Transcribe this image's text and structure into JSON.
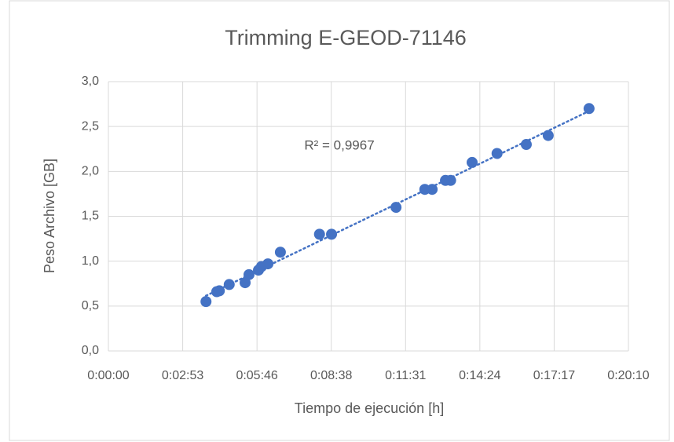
{
  "chart_data": {
    "type": "scatter",
    "title": "Trimming E-GEOD-71146",
    "x_label": "Tiempo de ejecución [h]",
    "y_label": "Peso Archivo [GB]",
    "annotation": "R² = 0,9967",
    "color": "#4472c4",
    "trendline": true,
    "grid": true,
    "x": [
      227,
      252,
      258,
      281,
      318,
      327,
      349,
      356,
      371,
      400,
      491,
      519,
      669,
      736,
      753,
      784,
      796,
      846,
      904,
      972,
      1023,
      1118
    ],
    "values": [
      0.55,
      0.66,
      0.67,
      0.74,
      0.76,
      0.85,
      0.9,
      0.94,
      0.97,
      1.1,
      1.3,
      1.3,
      1.6,
      1.8,
      1.8,
      1.9,
      1.9,
      2.1,
      2.2,
      2.3,
      2.4,
      2.7
    ],
    "xlim": [
      0,
      1209.6
    ],
    "xticks": [
      {
        "value": 0,
        "label": "0:00:00"
      },
      {
        "value": 172.8,
        "label": "0:02:53"
      },
      {
        "value": 345.6,
        "label": "0:05:46"
      },
      {
        "value": 518.4,
        "label": "0:08:38"
      },
      {
        "value": 691.2,
        "label": "0:11:31"
      },
      {
        "value": 864,
        "label": "0:14:24"
      },
      {
        "value": 1036.8,
        "label": "0:17:17"
      },
      {
        "value": 1209.6,
        "label": "0:20:10"
      }
    ],
    "ylim": [
      0,
      3
    ],
    "yticks": [
      {
        "value": 0,
        "label": "0,0"
      },
      {
        "value": 0.5,
        "label": "0,5"
      },
      {
        "value": 1,
        "label": "1,0"
      },
      {
        "value": 1.5,
        "label": "1,5"
      },
      {
        "value": 2,
        "label": "2,0"
      },
      {
        "value": 2.5,
        "label": "2,5"
      },
      {
        "value": 3,
        "label": "3,0"
      }
    ]
  }
}
